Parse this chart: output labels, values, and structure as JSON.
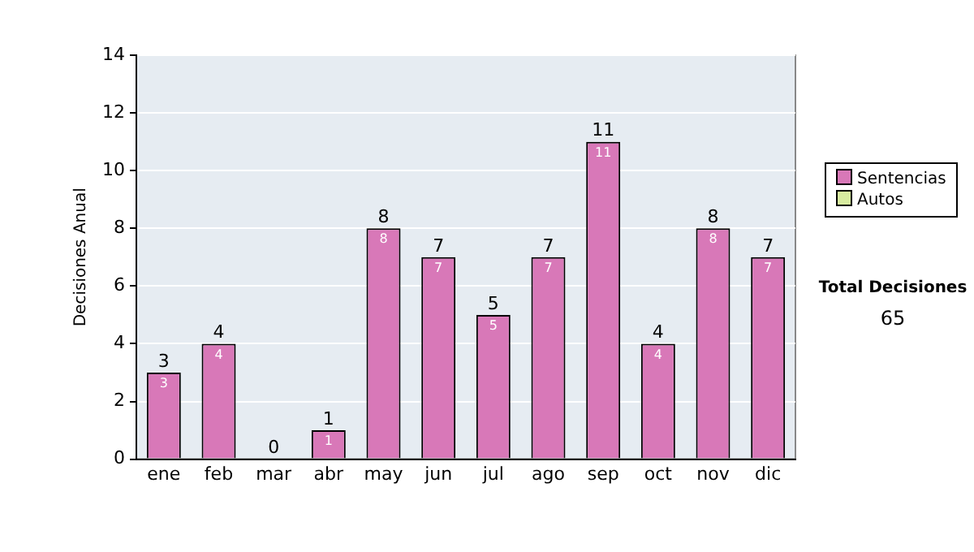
{
  "chart_data": {
    "type": "bar",
    "stacked": true,
    "ylabel": "Decisiones Anual",
    "categories": [
      "ene",
      "feb",
      "mar",
      "abr",
      "may",
      "jun",
      "jul",
      "ago",
      "sep",
      "oct",
      "nov",
      "dic"
    ],
    "series": [
      {
        "name": "Sentencias",
        "color": "#d878b8",
        "values": [
          3,
          4,
          0,
          1,
          8,
          7,
          5,
          7,
          11,
          4,
          8,
          7
        ],
        "value_labels": [
          "3",
          "4",
          null,
          "1",
          "8",
          "7",
          "5",
          "7",
          "11",
          "4",
          "8",
          "7"
        ]
      },
      {
        "name": "Autos",
        "color": "#d8eca0",
        "values": [
          0,
          0,
          0,
          0,
          0,
          0,
          0,
          0,
          0,
          0,
          0,
          0
        ]
      }
    ],
    "totals": [
      "3",
      "4",
      "0",
      "1",
      "8",
      "7",
      "5",
      "7",
      "11",
      "4",
      "8",
      "7"
    ],
    "ylim": [
      0,
      14
    ],
    "yticks": [
      0,
      2,
      4,
      6,
      8,
      10,
      12,
      14
    ],
    "grid": "y",
    "legend": "right",
    "annotations": [
      "Total Decisiones",
      "65"
    ]
  }
}
